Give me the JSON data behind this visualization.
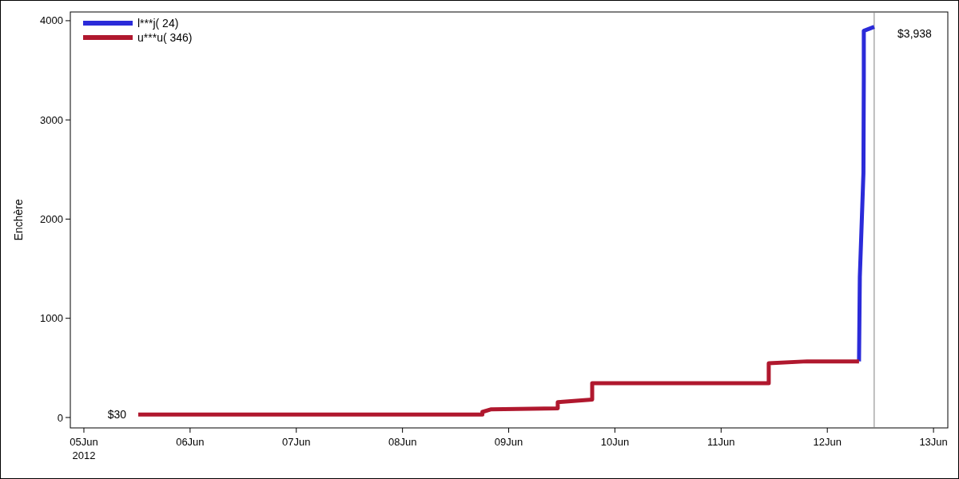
{
  "chart_data": {
    "type": "line",
    "ylabel": "Enchère",
    "xlim": [
      "2012-06-04T20:56",
      "2012-06-13T03:14"
    ],
    "xticks": [
      {
        "value": "2012-06-05",
        "label": "05Jun\n2012"
      },
      {
        "value": "2012-06-06",
        "label": "06Jun"
      },
      {
        "value": "2012-06-07",
        "label": "07Jun"
      },
      {
        "value": "2012-06-08",
        "label": "08Jun"
      },
      {
        "value": "2012-06-09",
        "label": "09Jun"
      },
      {
        "value": "2012-06-10",
        "label": "10Jun"
      },
      {
        "value": "2012-06-11",
        "label": "11Jun"
      },
      {
        "value": "2012-06-12",
        "label": "12Jun"
      },
      {
        "value": "2012-06-13",
        "label": "13Jun"
      }
    ],
    "ylim": [
      -105,
      4088
    ],
    "yticks": [
      0,
      1000,
      2000,
      3000,
      4000
    ],
    "grid": false,
    "legend": "top left",
    "line_style": "solid",
    "marker": "none",
    "series": [
      {
        "name": "l***j( 24)",
        "color": "#2b2bd9",
        "x": [
          "2012-06-12T07:10",
          "2012-06-12T07:21",
          "2012-06-12T08:10",
          "2012-06-12T08:15",
          "2012-06-12T08:15",
          "2012-06-12T10:36"
        ],
        "values": [
          566,
          1419,
          2465,
          3431,
          3898,
          3938
        ]
      },
      {
        "name": "u***u( 346)",
        "color": "#b0182e",
        "x": [
          "2012-06-05T12:17",
          "2012-06-08T18:03",
          "2012-06-08T18:03",
          "2012-06-08T19:55",
          "2012-06-09T11:05",
          "2012-06-09T11:05",
          "2012-06-09T18:52",
          "2012-06-09T18:52",
          "2012-06-11T10:46",
          "2012-06-11T10:46",
          "2012-06-11T19:26",
          "2012-06-12T07:10"
        ],
        "values": [
          30,
          30,
          56,
          82,
          93,
          155,
          180,
          346,
          346,
          547,
          566,
          566
        ]
      }
    ],
    "ref_lines": [
      {
        "axis": "x",
        "value": "2012-06-12T10:36",
        "color": "#808080"
      }
    ],
    "annotations": [
      {
        "text": "$30",
        "x": "2012-06-05T12:17",
        "y": 30
      },
      {
        "text": "$3,938",
        "x": "2012-06-12T10:36",
        "y": 3938
      }
    ]
  }
}
